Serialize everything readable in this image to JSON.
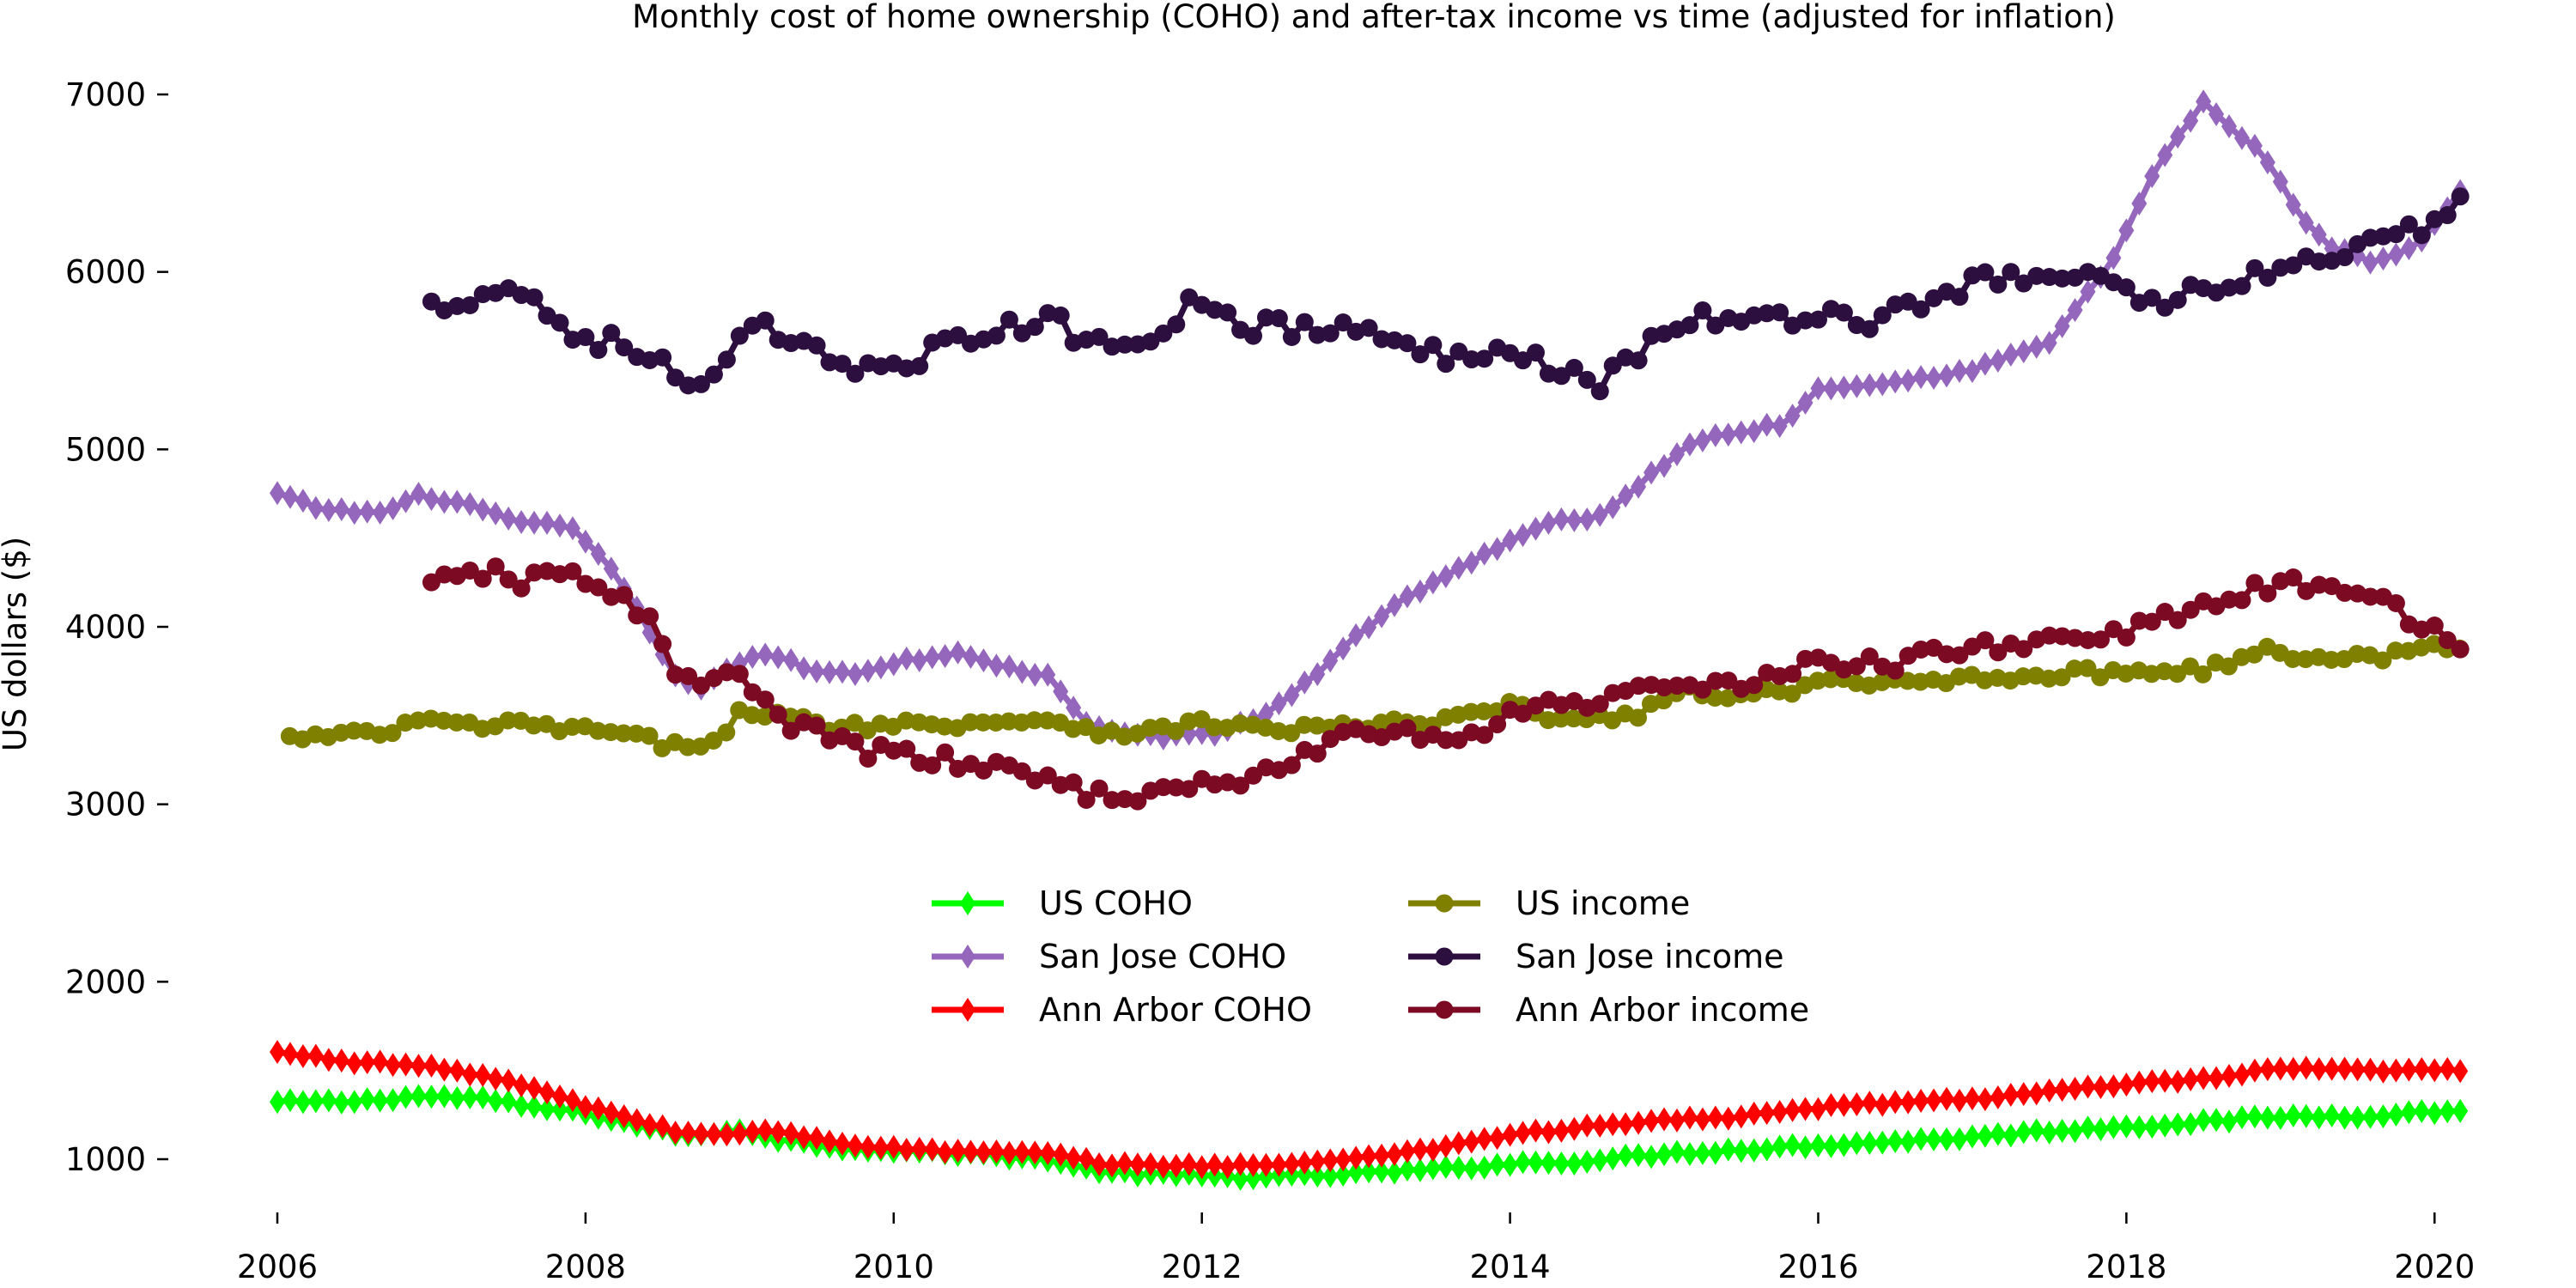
{
  "chart_data": {
    "type": "line",
    "title": "Monthly cost of home ownership (COHO) and after-tax income vs time (adjusted for inflation)",
    "xlabel": "",
    "ylabel": "US dollars ($)",
    "xlim": [
      2006,
      2020.5
    ],
    "ylim": [
      650,
      7200
    ],
    "x_ticks": [
      2006,
      2008,
      2010,
      2012,
      2014,
      2016,
      2018,
      2020
    ],
    "y_ticks": [
      1000,
      2000,
      3000,
      4000,
      5000,
      6000,
      7000
    ],
    "grid": false,
    "legend_position": "center",
    "legend_columns": 2,
    "series": [
      {
        "name": "US COHO",
        "color": "#00ff00",
        "marker": "diamond",
        "start": 2006.0,
        "end": 2020.17,
        "knots": [
          [
            2006.0,
            1320
          ],
          [
            2006.5,
            1325
          ],
          [
            2006.9,
            1355
          ],
          [
            2007.3,
            1345
          ],
          [
            2007.6,
            1300
          ],
          [
            2008.0,
            1260
          ],
          [
            2008.4,
            1180
          ],
          [
            2008.7,
            1125
          ],
          [
            2009.0,
            1170
          ],
          [
            2009.2,
            1120
          ],
          [
            2009.6,
            1070
          ],
          [
            2010.0,
            1050
          ],
          [
            2010.5,
            1030
          ],
          [
            2011.0,
            1000
          ],
          [
            2011.2,
            950
          ],
          [
            2011.5,
            920
          ],
          [
            2012.0,
            905
          ],
          [
            2012.3,
            900
          ],
          [
            2012.7,
            905
          ],
          [
            2013.0,
            920
          ],
          [
            2013.5,
            940
          ],
          [
            2014.0,
            975
          ],
          [
            2014.5,
            990
          ],
          [
            2015.0,
            1030
          ],
          [
            2015.5,
            1055
          ],
          [
            2016.0,
            1080
          ],
          [
            2016.5,
            1100
          ],
          [
            2017.0,
            1125
          ],
          [
            2017.5,
            1160
          ],
          [
            2018.0,
            1185
          ],
          [
            2018.5,
            1210
          ],
          [
            2019.0,
            1240
          ],
          [
            2019.5,
            1245
          ],
          [
            2020.17,
            1275
          ]
        ],
        "noise": 12
      },
      {
        "name": "San Jose COHO",
        "color": "#9467bd",
        "marker": "diamond",
        "start": 2006.0,
        "end": 2020.17,
        "knots": [
          [
            2006.0,
            4750
          ],
          [
            2006.3,
            4660
          ],
          [
            2006.7,
            4640
          ],
          [
            2006.9,
            4740
          ],
          [
            2007.2,
            4700
          ],
          [
            2007.5,
            4600
          ],
          [
            2007.9,
            4560
          ],
          [
            2008.2,
            4300
          ],
          [
            2008.4,
            4000
          ],
          [
            2008.55,
            3750
          ],
          [
            2008.75,
            3650
          ],
          [
            2009.0,
            3800
          ],
          [
            2009.2,
            3850
          ],
          [
            2009.5,
            3750
          ],
          [
            2009.8,
            3740
          ],
          [
            2010.0,
            3800
          ],
          [
            2010.4,
            3850
          ],
          [
            2010.7,
            3780
          ],
          [
            2011.0,
            3720
          ],
          [
            2011.25,
            3450
          ],
          [
            2011.5,
            3400
          ],
          [
            2011.8,
            3380
          ],
          [
            2012.1,
            3400
          ],
          [
            2012.4,
            3500
          ],
          [
            2012.7,
            3700
          ],
          [
            2013.0,
            3950
          ],
          [
            2013.3,
            4150
          ],
          [
            2013.6,
            4300
          ],
          [
            2014.0,
            4480
          ],
          [
            2014.3,
            4600
          ],
          [
            2014.6,
            4620
          ],
          [
            2014.9,
            4850
          ],
          [
            2015.2,
            5050
          ],
          [
            2015.5,
            5100
          ],
          [
            2015.8,
            5150
          ],
          [
            2016.0,
            5350
          ],
          [
            2016.5,
            5380
          ],
          [
            2017.0,
            5450
          ],
          [
            2017.5,
            5600
          ],
          [
            2017.9,
            6050
          ],
          [
            2018.2,
            6600
          ],
          [
            2018.5,
            6950
          ],
          [
            2018.7,
            6800
          ],
          [
            2018.9,
            6650
          ],
          [
            2019.1,
            6350
          ],
          [
            2019.3,
            6150
          ],
          [
            2019.6,
            6050
          ],
          [
            2019.9,
            6150
          ],
          [
            2020.17,
            6450
          ]
        ],
        "noise": 12
      },
      {
        "name": "Ann Arbor COHO",
        "color": "#ff0000",
        "marker": "diamond",
        "start": 2006.0,
        "end": 2020.17,
        "knots": [
          [
            2006.0,
            1600
          ],
          [
            2006.5,
            1550
          ],
          [
            2006.9,
            1530
          ],
          [
            2007.3,
            1480
          ],
          [
            2007.7,
            1390
          ],
          [
            2008.0,
            1300
          ],
          [
            2008.3,
            1230
          ],
          [
            2008.6,
            1150
          ],
          [
            2008.9,
            1140
          ],
          [
            2009.2,
            1160
          ],
          [
            2009.6,
            1100
          ],
          [
            2010.0,
            1060
          ],
          [
            2010.5,
            1040
          ],
          [
            2011.0,
            1030
          ],
          [
            2011.4,
            970
          ],
          [
            2011.8,
            965
          ],
          [
            2012.2,
            965
          ],
          [
            2012.7,
            975
          ],
          [
            2013.0,
            1010
          ],
          [
            2013.5,
            1060
          ],
          [
            2014.0,
            1140
          ],
          [
            2014.5,
            1180
          ],
          [
            2015.0,
            1220
          ],
          [
            2015.5,
            1240
          ],
          [
            2016.0,
            1290
          ],
          [
            2016.5,
            1320
          ],
          [
            2017.0,
            1340
          ],
          [
            2017.5,
            1380
          ],
          [
            2018.0,
            1420
          ],
          [
            2018.5,
            1450
          ],
          [
            2019.0,
            1510
          ],
          [
            2019.5,
            1500
          ],
          [
            2020.17,
            1500
          ]
        ],
        "noise": 10
      },
      {
        "name": "US income",
        "color": "#808000",
        "marker": "circle",
        "start": 2006.08,
        "end": 2020.17,
        "knots": [
          [
            2006.08,
            3370
          ],
          [
            2006.3,
            3380
          ],
          [
            2006.7,
            3400
          ],
          [
            2006.9,
            3470
          ],
          [
            2007.3,
            3440
          ],
          [
            2007.6,
            3450
          ],
          [
            2008.0,
            3420
          ],
          [
            2008.3,
            3380
          ],
          [
            2008.6,
            3320
          ],
          [
            2008.85,
            3380
          ],
          [
            2009.0,
            3510
          ],
          [
            2009.2,
            3500
          ],
          [
            2009.6,
            3440
          ],
          [
            2010.0,
            3450
          ],
          [
            2010.5,
            3460
          ],
          [
            2011.0,
            3480
          ],
          [
            2011.3,
            3420
          ],
          [
            2011.6,
            3400
          ],
          [
            2012.0,
            3460
          ],
          [
            2012.5,
            3420
          ],
          [
            2013.0,
            3440
          ],
          [
            2013.5,
            3460
          ],
          [
            2014.0,
            3550
          ],
          [
            2014.4,
            3470
          ],
          [
            2014.8,
            3500
          ],
          [
            2015.1,
            3640
          ],
          [
            2015.5,
            3600
          ],
          [
            2016.0,
            3680
          ],
          [
            2016.5,
            3680
          ],
          [
            2017.0,
            3720
          ],
          [
            2017.5,
            3730
          ],
          [
            2018.0,
            3750
          ],
          [
            2018.5,
            3760
          ],
          [
            2018.9,
            3860
          ],
          [
            2019.2,
            3820
          ],
          [
            2019.6,
            3830
          ],
          [
            2020.17,
            3900
          ]
        ],
        "noise": 30
      },
      {
        "name": "San Jose income",
        "color": "#2c0f3f",
        "marker": "circle",
        "start": 2007.0,
        "end": 2020.17,
        "knots": [
          [
            2007.0,
            5800
          ],
          [
            2007.3,
            5880
          ],
          [
            2007.6,
            5900
          ],
          [
            2007.9,
            5650
          ],
          [
            2008.2,
            5600
          ],
          [
            2008.5,
            5480
          ],
          [
            2008.7,
            5300
          ],
          [
            2008.9,
            5450
          ],
          [
            2009.1,
            5720
          ],
          [
            2009.4,
            5560
          ],
          [
            2009.7,
            5480
          ],
          [
            2010.0,
            5480
          ],
          [
            2010.5,
            5620
          ],
          [
            2011.0,
            5740
          ],
          [
            2011.3,
            5580
          ],
          [
            2011.6,
            5620
          ],
          [
            2012.0,
            5850
          ],
          [
            2012.3,
            5700
          ],
          [
            2012.6,
            5680
          ],
          [
            2013.0,
            5680
          ],
          [
            2013.3,
            5580
          ],
          [
            2013.6,
            5520
          ],
          [
            2014.0,
            5600
          ],
          [
            2014.3,
            5450
          ],
          [
            2014.6,
            5380
          ],
          [
            2014.9,
            5600
          ],
          [
            2015.2,
            5750
          ],
          [
            2015.5,
            5700
          ],
          [
            2016.0,
            5780
          ],
          [
            2016.3,
            5720
          ],
          [
            2016.6,
            5800
          ],
          [
            2017.0,
            5950
          ],
          [
            2017.5,
            5950
          ],
          [
            2017.9,
            6000
          ],
          [
            2018.1,
            5800
          ],
          [
            2018.5,
            5900
          ],
          [
            2018.9,
            6000
          ],
          [
            2019.2,
            6050
          ],
          [
            2019.6,
            6150
          ],
          [
            2020.0,
            6250
          ],
          [
            2020.17,
            6450
          ]
        ],
        "noise": 60
      },
      {
        "name": "Ann Arbor income",
        "color": "#7d0a23",
        "marker": "circle",
        "start": 2007.0,
        "end": 2020.17,
        "knots": [
          [
            2007.0,
            4220
          ],
          [
            2007.3,
            4320
          ],
          [
            2007.6,
            4250
          ],
          [
            2007.9,
            4300
          ],
          [
            2008.2,
            4200
          ],
          [
            2008.4,
            4050
          ],
          [
            2008.6,
            3700
          ],
          [
            2008.8,
            3680
          ],
          [
            2009.0,
            3750
          ],
          [
            2009.2,
            3500
          ],
          [
            2009.5,
            3400
          ],
          [
            2009.8,
            3300
          ],
          [
            2010.0,
            3290
          ],
          [
            2010.5,
            3220
          ],
          [
            2011.0,
            3150
          ],
          [
            2011.3,
            3060
          ],
          [
            2011.6,
            3050
          ],
          [
            2011.9,
            3080
          ],
          [
            2012.2,
            3130
          ],
          [
            2012.5,
            3200
          ],
          [
            2012.8,
            3330
          ],
          [
            2013.0,
            3420
          ],
          [
            2013.3,
            3400
          ],
          [
            2013.7,
            3350
          ],
          [
            2014.0,
            3500
          ],
          [
            2014.3,
            3600
          ],
          [
            2014.7,
            3580
          ],
          [
            2015.0,
            3700
          ],
          [
            2015.5,
            3650
          ],
          [
            2016.0,
            3800
          ],
          [
            2016.5,
            3800
          ],
          [
            2017.0,
            3880
          ],
          [
            2017.5,
            3930
          ],
          [
            2018.0,
            3980
          ],
          [
            2018.5,
            4100
          ],
          [
            2019.0,
            4250
          ],
          [
            2019.3,
            4200
          ],
          [
            2019.6,
            4150
          ],
          [
            2020.0,
            4000
          ],
          [
            2020.17,
            3920
          ]
        ],
        "noise": 50
      }
    ]
  }
}
